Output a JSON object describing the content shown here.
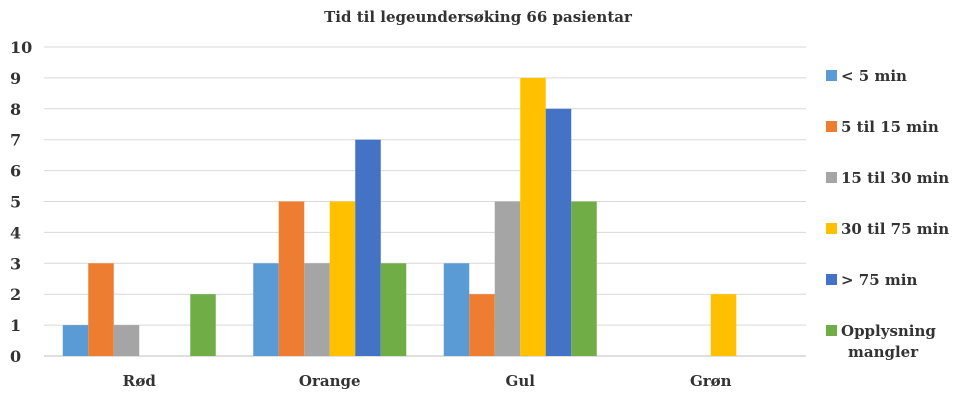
{
  "chart_data": {
    "type": "bar",
    "title": "Tid til legeundersøking 66 pasientar",
    "categories": [
      "Rød",
      "Orange",
      "Gul",
      "Grøn"
    ],
    "series": [
      {
        "name": "< 5 min",
        "color": "#5B9BD5",
        "values": [
          1,
          3,
          3,
          0
        ]
      },
      {
        "name": "5 til 15 min",
        "color": "#ED7D31",
        "values": [
          3,
          5,
          2,
          0
        ]
      },
      {
        "name": "15 til 30 min",
        "color": "#A5A5A5",
        "values": [
          1,
          3,
          5,
          0
        ]
      },
      {
        "name": "30 til 75 min",
        "color": "#FFC000",
        "values": [
          0,
          5,
          9,
          2
        ]
      },
      {
        "name": "> 75 min",
        "color": "#4472C4",
        "values": [
          0,
          7,
          8,
          0
        ]
      },
      {
        "name": "Opplysning mangler",
        "color": "#70AD47",
        "values": [
          2,
          3,
          5,
          0
        ]
      }
    ],
    "ylim": [
      0,
      10
    ],
    "yticks": [
      0,
      1,
      2,
      3,
      4,
      5,
      6,
      7,
      8,
      9,
      10
    ],
    "grid": true,
    "legend_position": "right"
  }
}
